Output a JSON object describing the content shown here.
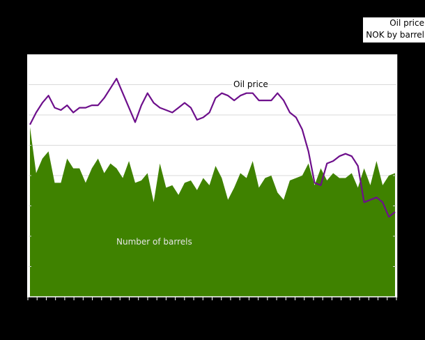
{
  "chart_data": {
    "type": "area+line",
    "title": "",
    "xlabel": "",
    "ylabel_left": "",
    "ylabel_right": "",
    "legend": {
      "position": "top-right",
      "entries": [
        "Oil price",
        "NOK by barrel"
      ]
    },
    "annotations": [
      {
        "text": "Oil price",
        "series": "Oil price"
      },
      {
        "text": "Number of barrels",
        "series": "Number of barrels"
      }
    ],
    "grid": true,
    "colors": {
      "background": "#000000",
      "plot_background": "#ffffff",
      "grid": "#d9d9d9",
      "barrels_area": "#3f8200",
      "oil_price_line": "#6d0f8b",
      "axis": "#ffffff"
    },
    "y_range_pixels_note": "axis tick labels not visible in image; values given as relative plot units 0-100 (0 = bottom, 100 = top of plot)",
    "series": [
      {
        "name": "Number of barrels",
        "type": "area",
        "values": [
          70,
          51,
          57,
          60,
          47,
          47,
          57,
          53,
          53,
          47,
          53,
          57,
          51,
          55,
          53,
          49,
          56,
          47,
          48,
          51,
          39,
          55,
          45,
          46,
          42,
          47,
          48,
          44,
          49,
          46,
          54,
          49,
          40,
          45,
          51,
          49,
          56,
          45,
          49,
          50,
          43,
          40,
          48,
          49,
          50,
          55,
          46,
          53,
          48,
          51,
          49,
          49,
          51,
          45,
          53,
          46,
          56,
          46,
          50,
          51
        ]
      },
      {
        "name": "Oil price",
        "type": "line",
        "values": [
          71,
          76,
          80,
          83,
          78,
          77,
          79,
          76,
          78,
          78,
          79,
          79,
          82,
          86,
          90,
          84,
          78,
          72,
          79,
          84,
          80,
          78,
          77,
          76,
          78,
          80,
          78,
          73,
          74,
          76,
          82,
          84,
          83,
          81,
          83,
          84,
          84,
          81,
          81,
          81,
          84,
          81,
          76,
          74,
          69,
          60,
          47,
          46,
          55,
          56,
          58,
          59,
          58,
          54,
          39,
          40,
          41,
          39,
          33,
          35
        ]
      }
    ]
  },
  "legend": {
    "line1": "Oil price",
    "line2": "NOK by barrel"
  },
  "labels": {
    "oil_price": "Oil price",
    "barrels": "Number of barrels"
  }
}
